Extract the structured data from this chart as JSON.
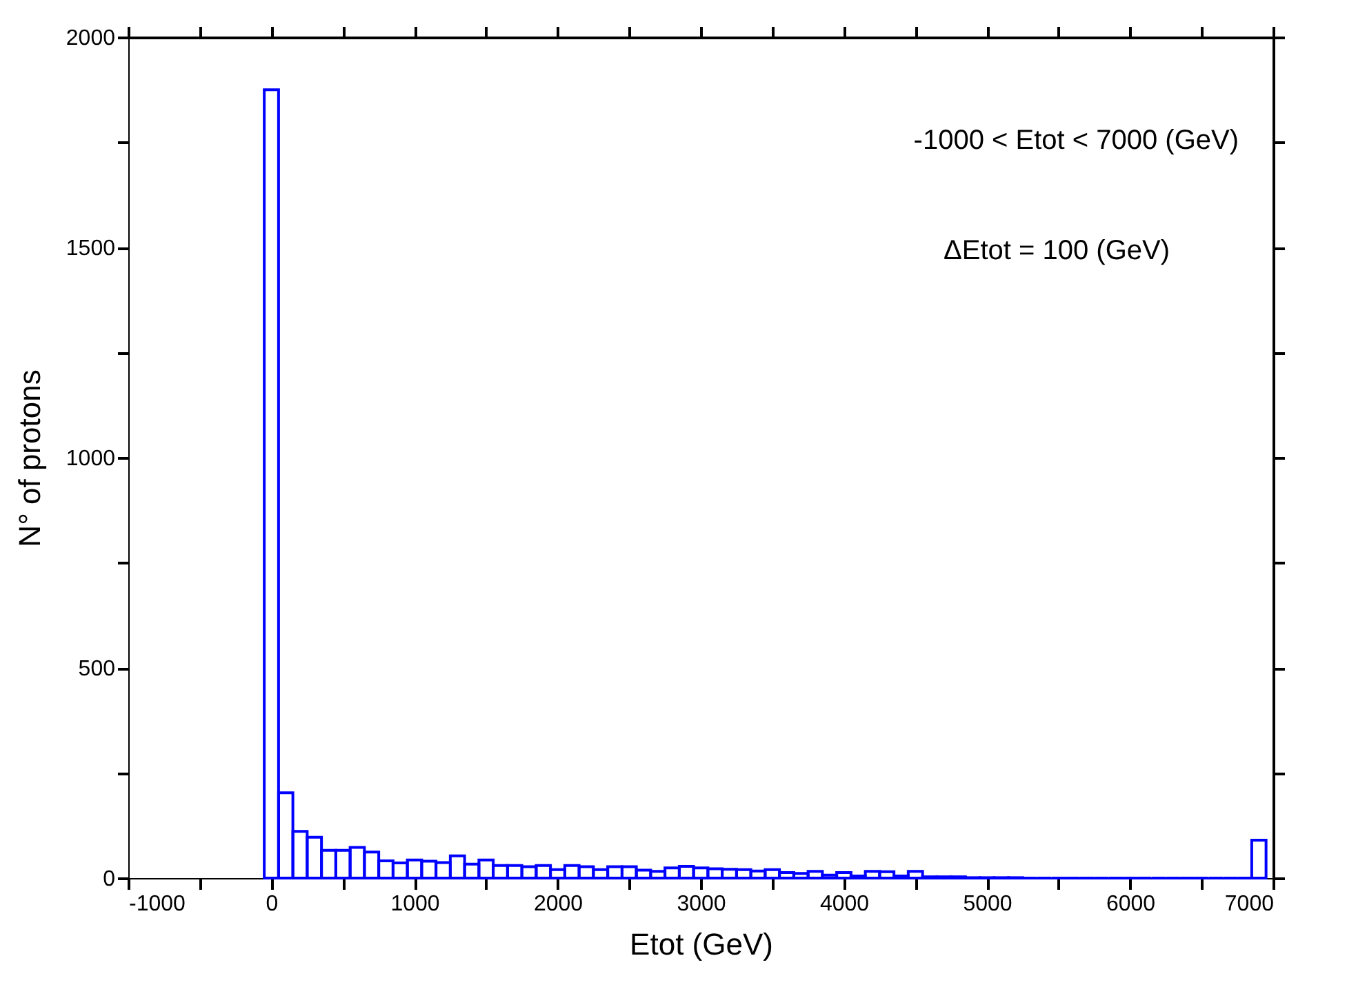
{
  "chart_data": {
    "type": "histogram",
    "xlabel": "Etot (GeV)",
    "ylabel": "N° of protons",
    "bins": [
      -50,
      50,
      150,
      250,
      350,
      450,
      550,
      650,
      750,
      850,
      950,
      1050,
      1150,
      1250,
      1350,
      1450,
      1550,
      1650,
      1750,
      1850,
      1950,
      2050,
      2150,
      2250,
      2350,
      2450,
      2550,
      2650,
      2750,
      2850,
      2950,
      3050,
      3150,
      3250,
      3350,
      3450,
      3550,
      3650,
      3750,
      3850,
      3950,
      4050,
      4150,
      4250,
      4350,
      4450,
      4550,
      4650,
      4750,
      4850,
      4950,
      5050,
      5150,
      5250,
      5350,
      5450,
      5550,
      5650,
      5750,
      5850,
      5950,
      6050,
      6150,
      6250,
      6350,
      6450,
      6550,
      6650,
      6750,
      6850,
      6950
    ],
    "values": [
      1875,
      203,
      111,
      97,
      66,
      66,
      73,
      62,
      41,
      36,
      43,
      40,
      37,
      53,
      33,
      43,
      30,
      30,
      27,
      30,
      20,
      30,
      27,
      20,
      27,
      27,
      19,
      16,
      24,
      28,
      24,
      22,
      21,
      20,
      17,
      20,
      13,
      11,
      16,
      7,
      13,
      5,
      16,
      15,
      5,
      16,
      3,
      3,
      3,
      1,
      1,
      1,
      1,
      0,
      0,
      0,
      0,
      0,
      0,
      0,
      0,
      0,
      0,
      0,
      0,
      0,
      0,
      0,
      0,
      90
    ],
    "color": "#0000ff",
    "xlim": [
      -1000,
      7000
    ],
    "xticks": [
      -1000,
      {
        "value": -500,
        "label": null
      },
      0,
      {
        "value": 500,
        "label": null
      },
      1000,
      {
        "value": 1500,
        "label": null
      },
      2000,
      {
        "value": 2500,
        "label": null
      },
      3000,
      {
        "value": 3500,
        "label": null
      },
      4000,
      {
        "value": 4500,
        "label": null
      },
      5000,
      {
        "value": 5500,
        "label": null
      },
      6000,
      {
        "value": 6500,
        "label": null
      },
      7000
    ],
    "ylim": [
      0,
      2000
    ],
    "yticks": [
      0,
      {
        "value": 250,
        "label": null
      },
      500,
      {
        "value": 750,
        "label": null
      },
      1000,
      {
        "value": 1250,
        "label": null
      },
      1500,
      {
        "value": 1750,
        "label": null
      },
      2000
    ],
    "grid": false,
    "annotations": [
      "-1000 < Etot < 7000 (GeV)",
      "ΔEtot = 100 (GeV)"
    ]
  }
}
